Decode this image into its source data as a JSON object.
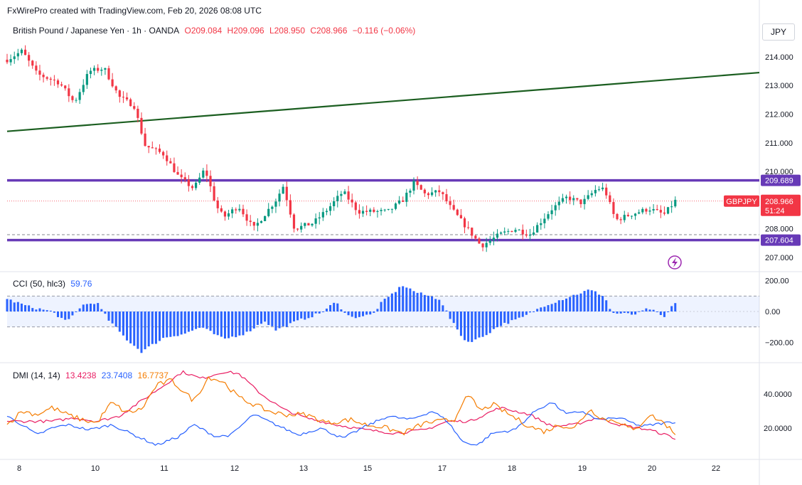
{
  "header": "FxWirePro created with TradingView.com, Feb 20, 2026 08:08 UTC",
  "price_legend": {
    "instrument": "British Pound / Japanese Yen · 1h · OANDA",
    "open": "O209.084",
    "high": "H209.096",
    "low": "L208.950",
    "close": "C208.966",
    "change": "−0.116 (−0.06%)"
  },
  "currency_button": "JPY",
  "symbol_badge": "GBPJPY",
  "price_badge": "208.966",
  "countdown_badge": "51:24",
  "level_upper": "209.689",
  "level_lower": "207.604",
  "cci_legend": {
    "label": "CCI (50, hlc3)",
    "value": "59.76"
  },
  "dmi_legend": {
    "label": "DMI (14, 14)",
    "plus": "13.4238",
    "minus": "23.7408",
    "adx": "16.7737"
  },
  "colors": {
    "up": "#089981",
    "down": "#f23645",
    "trendline": "#1b5e20",
    "level": "#673ab7",
    "cci": "#2962ff",
    "dmi_plus": "#e91e63",
    "dmi_minus": "#2962ff",
    "adx": "#f57c00"
  },
  "chart_data": [
    {
      "type": "candlestick",
      "title": "British Pound / Japanese Yen · 1h · OANDA",
      "x_ticks": [
        "8",
        "10",
        "11",
        "12",
        "13",
        "15",
        "17",
        "18",
        "19",
        "20",
        "22"
      ],
      "y_ticks": [
        "207.000",
        "208.000",
        "209.000",
        "210.000",
        "211.000",
        "212.000",
        "213.000",
        "214.000"
      ],
      "ylim": [
        206.7,
        214.55
      ],
      "horizontal_levels": [
        209.689,
        207.604
      ],
      "trendline": [
        {
          "x": 0.0,
          "y": 211.4
        },
        {
          "x": 1.0,
          "y": 213.45
        }
      ],
      "close_path": [
        {
          "t": 0.0,
          "p": 213.9
        },
        {
          "t": 0.02,
          "p": 214.2
        },
        {
          "t": 0.04,
          "p": 213.4
        },
        {
          "t": 0.07,
          "p": 213.1
        },
        {
          "t": 0.09,
          "p": 212.4
        },
        {
          "t": 0.11,
          "p": 213.5
        },
        {
          "t": 0.13,
          "p": 213.6
        },
        {
          "t": 0.15,
          "p": 212.6
        },
        {
          "t": 0.17,
          "p": 212.3
        },
        {
          "t": 0.185,
          "p": 210.9
        },
        {
          "t": 0.21,
          "p": 210.6
        },
        {
          "t": 0.23,
          "p": 209.8
        },
        {
          "t": 0.25,
          "p": 209.4
        },
        {
          "t": 0.265,
          "p": 210.1
        },
        {
          "t": 0.28,
          "p": 208.8
        },
        {
          "t": 0.29,
          "p": 208.4
        },
        {
          "t": 0.31,
          "p": 208.8
        },
        {
          "t": 0.33,
          "p": 208.0
        },
        {
          "t": 0.36,
          "p": 209.0
        },
        {
          "t": 0.37,
          "p": 209.5
        },
        {
          "t": 0.385,
          "p": 208.0
        },
        {
          "t": 0.41,
          "p": 208.2
        },
        {
          "t": 0.43,
          "p": 208.7
        },
        {
          "t": 0.45,
          "p": 209.3
        },
        {
          "t": 0.47,
          "p": 208.6
        },
        {
          "t": 0.49,
          "p": 208.6
        },
        {
          "t": 0.51,
          "p": 208.6
        },
        {
          "t": 0.53,
          "p": 209.0
        },
        {
          "t": 0.545,
          "p": 209.6
        },
        {
          "t": 0.56,
          "p": 209.2
        },
        {
          "t": 0.58,
          "p": 209.3
        },
        {
          "t": 0.595,
          "p": 208.7
        },
        {
          "t": 0.62,
          "p": 207.9
        },
        {
          "t": 0.635,
          "p": 207.4
        },
        {
          "t": 0.66,
          "p": 207.8
        },
        {
          "t": 0.68,
          "p": 208.0
        },
        {
          "t": 0.7,
          "p": 207.8
        },
        {
          "t": 0.73,
          "p": 208.7
        },
        {
          "t": 0.75,
          "p": 209.1
        },
        {
          "t": 0.77,
          "p": 208.9
        },
        {
          "t": 0.79,
          "p": 209.4
        },
        {
          "t": 0.8,
          "p": 209.4
        },
        {
          "t": 0.815,
          "p": 208.3
        },
        {
          "t": 0.835,
          "p": 208.5
        },
        {
          "t": 0.86,
          "p": 208.7
        },
        {
          "t": 0.88,
          "p": 208.5
        },
        {
          "t": 0.895,
          "p": 208.97
        }
      ]
    },
    {
      "type": "bar",
      "title": "CCI (50, hlc3)",
      "y_ticks": [
        "200.00",
        "0.00",
        "−200.00"
      ],
      "ylim": [
        -260,
        230
      ],
      "bands": [
        100,
        -100
      ],
      "path": [
        {
          "t": 0.0,
          "v": 80
        },
        {
          "t": 0.03,
          "v": 30
        },
        {
          "t": 0.06,
          "v": 0
        },
        {
          "t": 0.08,
          "v": -70
        },
        {
          "t": 0.1,
          "v": 40
        },
        {
          "t": 0.12,
          "v": 60
        },
        {
          "t": 0.135,
          "v": -50
        },
        {
          "t": 0.16,
          "v": -180
        },
        {
          "t": 0.18,
          "v": -260
        },
        {
          "t": 0.21,
          "v": -170
        },
        {
          "t": 0.24,
          "v": -140
        },
        {
          "t": 0.26,
          "v": -100
        },
        {
          "t": 0.29,
          "v": -180
        },
        {
          "t": 0.32,
          "v": -140
        },
        {
          "t": 0.345,
          "v": -60
        },
        {
          "t": 0.36,
          "v": -120
        },
        {
          "t": 0.39,
          "v": -60
        },
        {
          "t": 0.42,
          "v": -10
        },
        {
          "t": 0.44,
          "v": 60
        },
        {
          "t": 0.46,
          "v": -40
        },
        {
          "t": 0.49,
          "v": -20
        },
        {
          "t": 0.5,
          "v": 50
        },
        {
          "t": 0.53,
          "v": 170
        },
        {
          "t": 0.55,
          "v": 120
        },
        {
          "t": 0.58,
          "v": 80
        },
        {
          "t": 0.595,
          "v": -60
        },
        {
          "t": 0.615,
          "v": -200
        },
        {
          "t": 0.635,
          "v": -170
        },
        {
          "t": 0.66,
          "v": -90
        },
        {
          "t": 0.69,
          "v": -40
        },
        {
          "t": 0.72,
          "v": 40
        },
        {
          "t": 0.75,
          "v": 90
        },
        {
          "t": 0.78,
          "v": 140
        },
        {
          "t": 0.8,
          "v": 100
        },
        {
          "t": 0.81,
          "v": -10
        },
        {
          "t": 0.84,
          "v": -20
        },
        {
          "t": 0.86,
          "v": 20
        },
        {
          "t": 0.88,
          "v": -40
        },
        {
          "t": 0.895,
          "v": 60
        }
      ]
    },
    {
      "type": "line",
      "title": "DMI (14, 14)",
      "y_ticks": [
        "40.0000",
        "20.0000"
      ],
      "ylim": [
        8,
        55
      ],
      "series": [
        {
          "name": "+DI",
          "color": "#e91e63",
          "values": [
            {
              "t": 0.0,
              "v": 24
            },
            {
              "t": 0.03,
              "v": 24
            },
            {
              "t": 0.06,
              "v": 24
            },
            {
              "t": 0.09,
              "v": 26
            },
            {
              "t": 0.12,
              "v": 24
            },
            {
              "t": 0.15,
              "v": 27
            },
            {
              "t": 0.18,
              "v": 36
            },
            {
              "t": 0.21,
              "v": 45
            },
            {
              "t": 0.235,
              "v": 53
            },
            {
              "t": 0.26,
              "v": 49
            },
            {
              "t": 0.29,
              "v": 53
            },
            {
              "t": 0.31,
              "v": 52
            },
            {
              "t": 0.34,
              "v": 40
            },
            {
              "t": 0.37,
              "v": 31
            },
            {
              "t": 0.4,
              "v": 26
            },
            {
              "t": 0.44,
              "v": 22
            },
            {
              "t": 0.48,
              "v": 19
            },
            {
              "t": 0.52,
              "v": 17
            },
            {
              "t": 0.56,
              "v": 19
            },
            {
              "t": 0.59,
              "v": 24
            },
            {
              "t": 0.62,
              "v": 24
            },
            {
              "t": 0.64,
              "v": 28
            },
            {
              "t": 0.66,
              "v": 32
            },
            {
              "t": 0.7,
              "v": 28
            },
            {
              "t": 0.73,
              "v": 21
            },
            {
              "t": 0.76,
              "v": 22
            },
            {
              "t": 0.79,
              "v": 26
            },
            {
              "t": 0.82,
              "v": 22
            },
            {
              "t": 0.86,
              "v": 19
            },
            {
              "t": 0.89,
              "v": 15
            },
            {
              "t": 0.895,
              "v": 13.4
            }
          ]
        },
        {
          "name": "−DI",
          "color": "#2962ff",
          "values": [
            {
              "t": 0.0,
              "v": 27
            },
            {
              "t": 0.02,
              "v": 22
            },
            {
              "t": 0.04,
              "v": 16
            },
            {
              "t": 0.06,
              "v": 20
            },
            {
              "t": 0.08,
              "v": 22
            },
            {
              "t": 0.11,
              "v": 19
            },
            {
              "t": 0.14,
              "v": 22
            },
            {
              "t": 0.17,
              "v": 16
            },
            {
              "t": 0.2,
              "v": 10
            },
            {
              "t": 0.23,
              "v": 15
            },
            {
              "t": 0.25,
              "v": 22
            },
            {
              "t": 0.28,
              "v": 15
            },
            {
              "t": 0.3,
              "v": 16
            },
            {
              "t": 0.33,
              "v": 28
            },
            {
              "t": 0.36,
              "v": 22
            },
            {
              "t": 0.39,
              "v": 16
            },
            {
              "t": 0.42,
              "v": 20
            },
            {
              "t": 0.45,
              "v": 14
            },
            {
              "t": 0.48,
              "v": 21
            },
            {
              "t": 0.51,
              "v": 27
            },
            {
              "t": 0.54,
              "v": 25
            },
            {
              "t": 0.57,
              "v": 30
            },
            {
              "t": 0.59,
              "v": 24
            },
            {
              "t": 0.61,
              "v": 12
            },
            {
              "t": 0.63,
              "v": 10
            },
            {
              "t": 0.65,
              "v": 17
            },
            {
              "t": 0.68,
              "v": 19
            },
            {
              "t": 0.71,
              "v": 31
            },
            {
              "t": 0.73,
              "v": 35
            },
            {
              "t": 0.75,
              "v": 28
            },
            {
              "t": 0.77,
              "v": 30
            },
            {
              "t": 0.79,
              "v": 25
            },
            {
              "t": 0.82,
              "v": 26
            },
            {
              "t": 0.85,
              "v": 21
            },
            {
              "t": 0.88,
              "v": 23
            },
            {
              "t": 0.895,
              "v": 23.7
            }
          ]
        },
        {
          "name": "ADX",
          "color": "#f57c00",
          "values": [
            {
              "t": 0.0,
              "v": 22
            },
            {
              "t": 0.02,
              "v": 30
            },
            {
              "t": 0.04,
              "v": 28
            },
            {
              "t": 0.06,
              "v": 32
            },
            {
              "t": 0.08,
              "v": 28
            },
            {
              "t": 0.1,
              "v": 25
            },
            {
              "t": 0.12,
              "v": 23
            },
            {
              "t": 0.14,
              "v": 35
            },
            {
              "t": 0.16,
              "v": 29
            },
            {
              "t": 0.18,
              "v": 31
            },
            {
              "t": 0.2,
              "v": 45
            },
            {
              "t": 0.22,
              "v": 48
            },
            {
              "t": 0.25,
              "v": 36
            },
            {
              "t": 0.27,
              "v": 50
            },
            {
              "t": 0.29,
              "v": 47
            },
            {
              "t": 0.31,
              "v": 38
            },
            {
              "t": 0.33,
              "v": 34
            },
            {
              "t": 0.35,
              "v": 30
            },
            {
              "t": 0.37,
              "v": 28
            },
            {
              "t": 0.4,
              "v": 28
            },
            {
              "t": 0.43,
              "v": 23
            },
            {
              "t": 0.46,
              "v": 25
            },
            {
              "t": 0.48,
              "v": 22
            },
            {
              "t": 0.5,
              "v": 21
            },
            {
              "t": 0.53,
              "v": 17
            },
            {
              "t": 0.56,
              "v": 23
            },
            {
              "t": 0.58,
              "v": 24
            },
            {
              "t": 0.6,
              "v": 25
            },
            {
              "t": 0.61,
              "v": 36
            },
            {
              "t": 0.62,
              "v": 38
            },
            {
              "t": 0.635,
              "v": 30
            },
            {
              "t": 0.65,
              "v": 34
            },
            {
              "t": 0.68,
              "v": 26
            },
            {
              "t": 0.7,
              "v": 21
            },
            {
              "t": 0.72,
              "v": 18
            },
            {
              "t": 0.74,
              "v": 22
            },
            {
              "t": 0.76,
              "v": 20
            },
            {
              "t": 0.78,
              "v": 31
            },
            {
              "t": 0.8,
              "v": 25
            },
            {
              "t": 0.82,
              "v": 24
            },
            {
              "t": 0.84,
              "v": 18
            },
            {
              "t": 0.86,
              "v": 28
            },
            {
              "t": 0.88,
              "v": 23
            },
            {
              "t": 0.895,
              "v": 16.8
            }
          ]
        }
      ]
    }
  ]
}
